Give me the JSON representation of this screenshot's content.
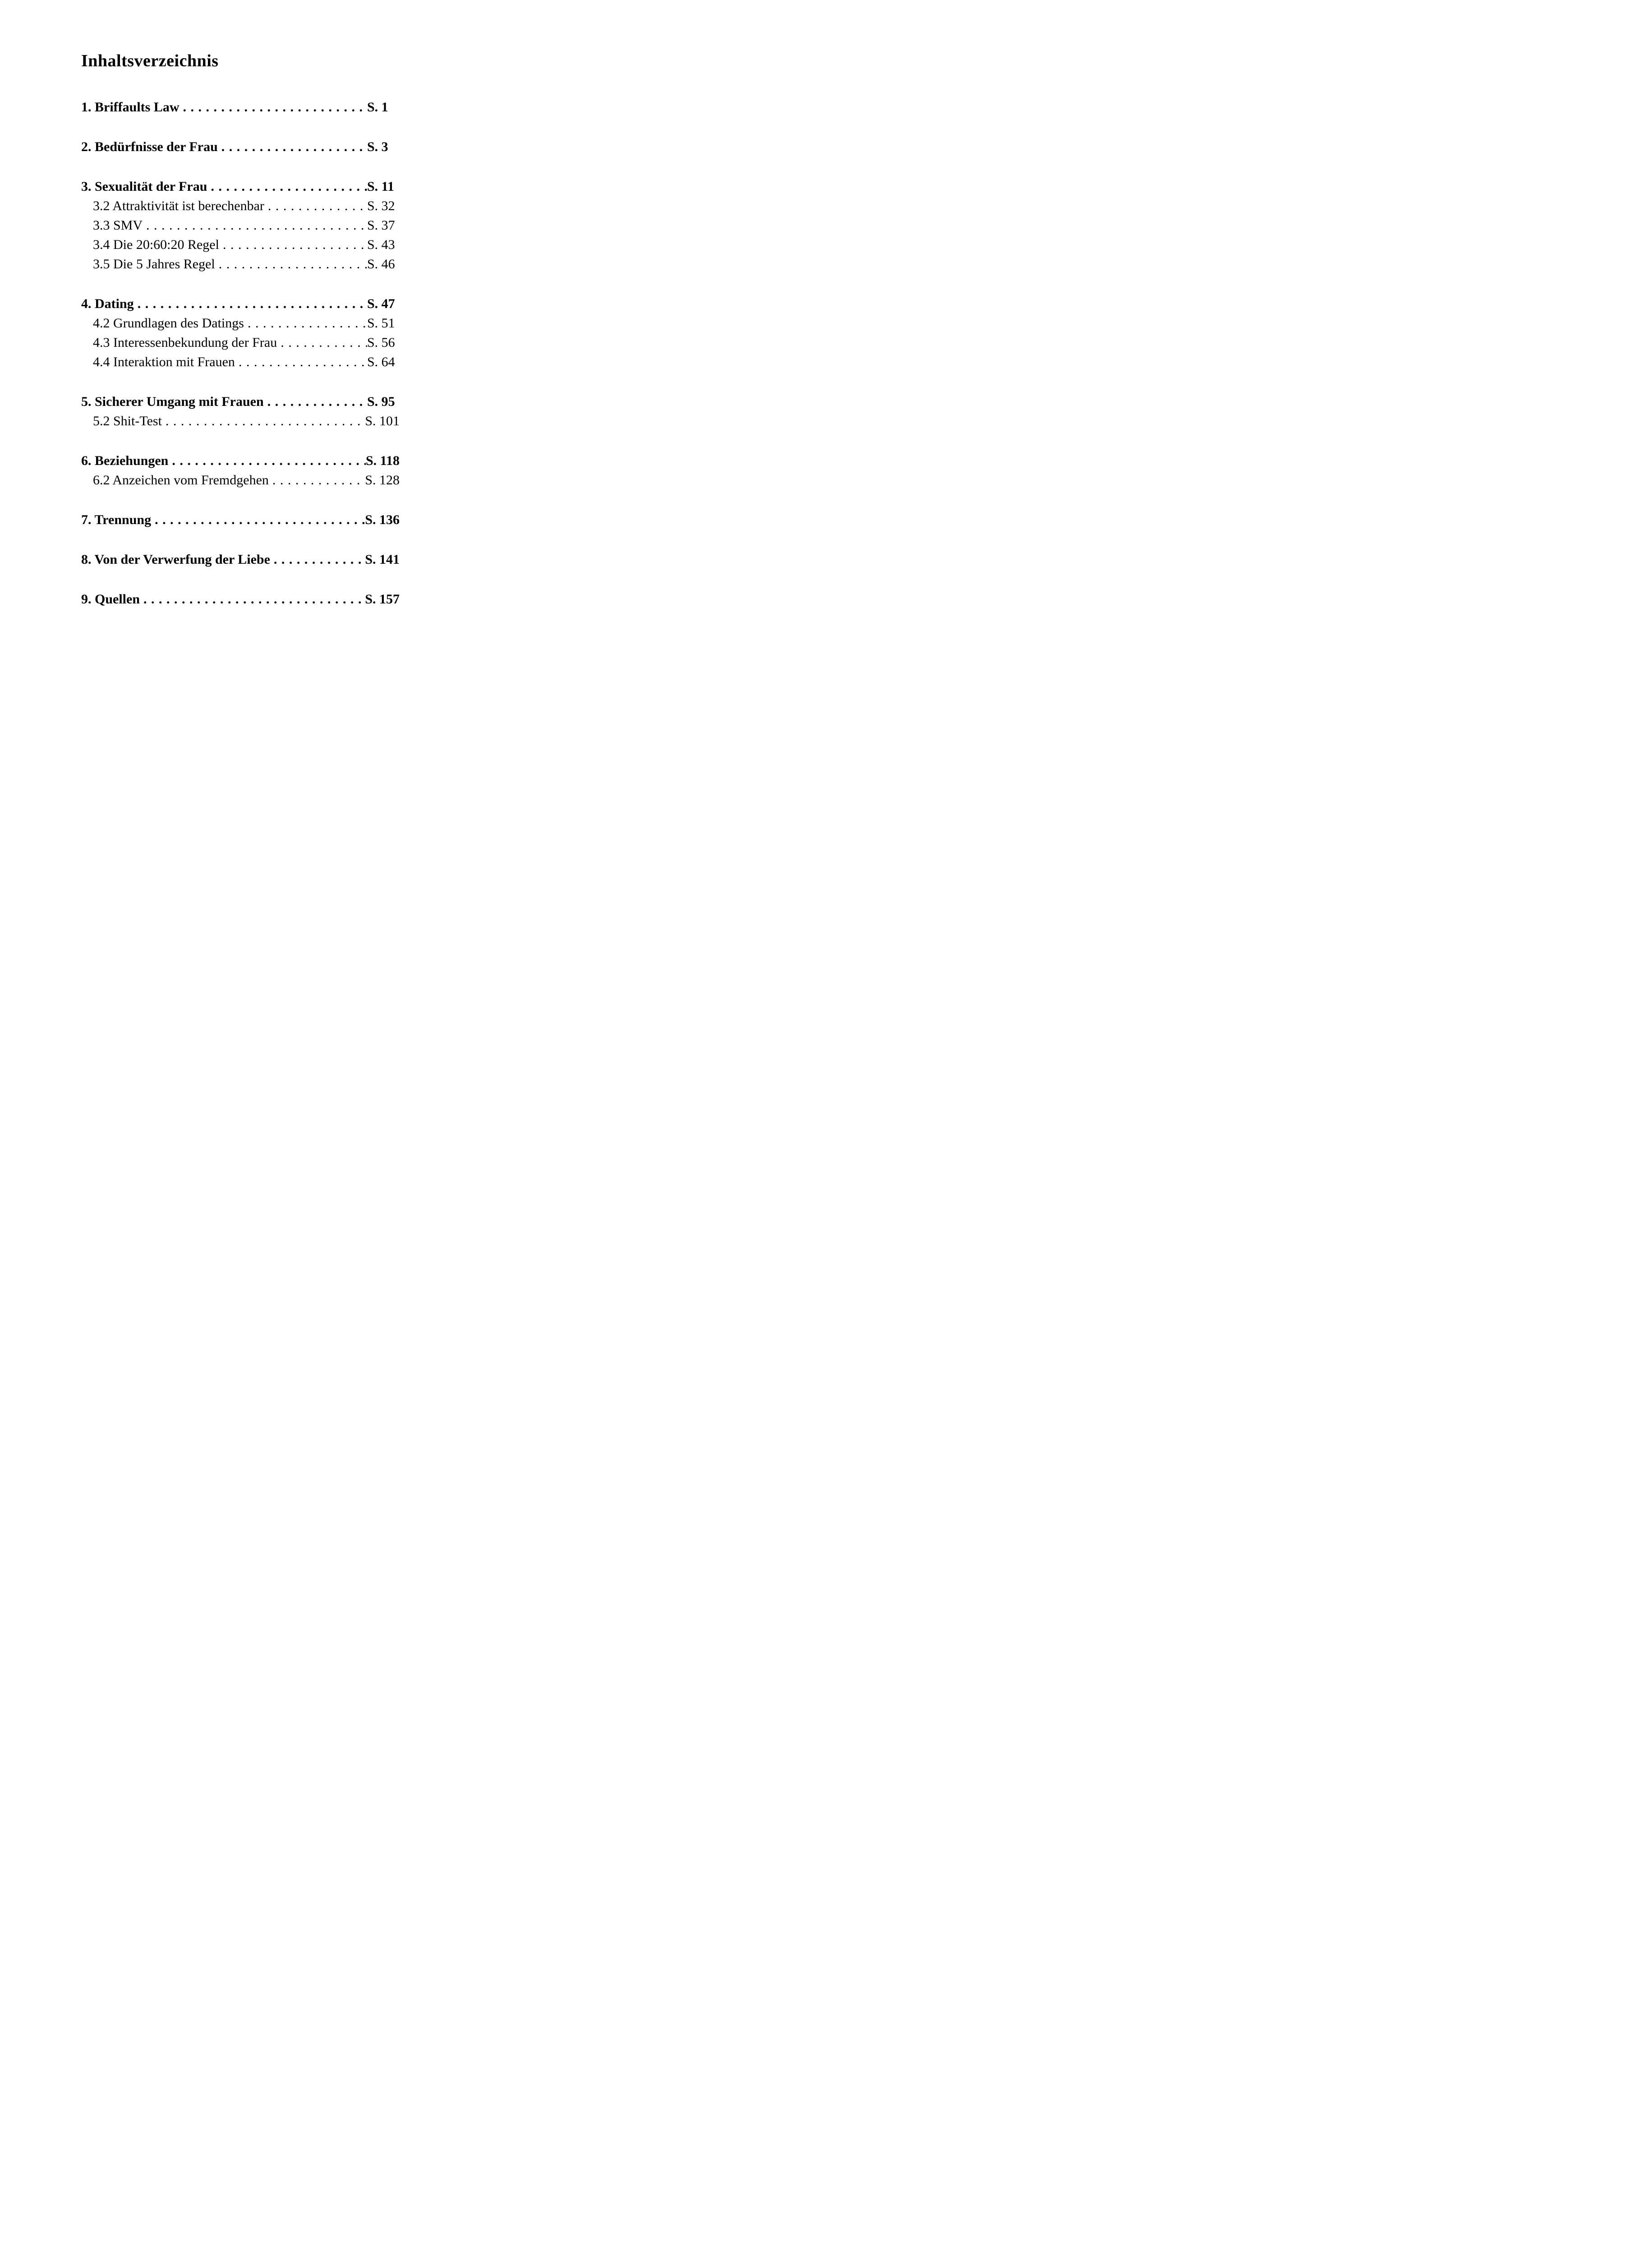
{
  "document": {
    "title": "Inhaltsverzeichnis"
  },
  "toc": {
    "leader_char": ".",
    "entries": [
      {
        "label": "1. Briffaults Law",
        "page": "S. 1",
        "level": "chapter"
      },
      {
        "label": "2. Bedürfnisse der Frau",
        "page": "S. 3",
        "level": "chapter"
      },
      {
        "label": "3. Sexualität der Frau",
        "page": "S. 11",
        "level": "chapter"
      },
      {
        "label": "3.2 Attraktivität ist berechenbar",
        "page": "S. 32",
        "level": "section"
      },
      {
        "label": "3.3 SMV",
        "page": "S. 37",
        "level": "section"
      },
      {
        "label": "3.4 Die 20:60:20 Regel",
        "page": "S. 43",
        "level": "section"
      },
      {
        "label": "3.5 Die 5 Jahres Regel",
        "page": "S. 46",
        "level": "section"
      },
      {
        "label": "4. Dating",
        "page": "S. 47",
        "level": "chapter"
      },
      {
        "label": "4.2 Grundlagen des Datings",
        "page": "S. 51",
        "level": "section"
      },
      {
        "label": "4.3 Interessenbekundung der Frau",
        "page": "S. 56",
        "level": "section"
      },
      {
        "label": "4.4 Interaktion mit Frauen",
        "page": "S. 64",
        "level": "section"
      },
      {
        "label": "5. Sicherer Umgang mit Frauen",
        "page": "S. 95",
        "level": "chapter"
      },
      {
        "label": "5.2 Shit-Test",
        "page": "S. 101",
        "level": "section"
      },
      {
        "label": "6. Beziehungen",
        "page": "S. 118",
        "level": "chapter"
      },
      {
        "label": "6.2 Anzeichen vom Fremdgehen",
        "page": "S. 128",
        "level": "section"
      },
      {
        "label": "7. Trennung",
        "page": "S. 136",
        "level": "chapter"
      },
      {
        "label": "8. Von der Verwerfung der Liebe",
        "page": "S. 141",
        "level": "chapter"
      },
      {
        "label": "9. Quellen",
        "page": "S. 157",
        "level": "chapter"
      }
    ]
  }
}
